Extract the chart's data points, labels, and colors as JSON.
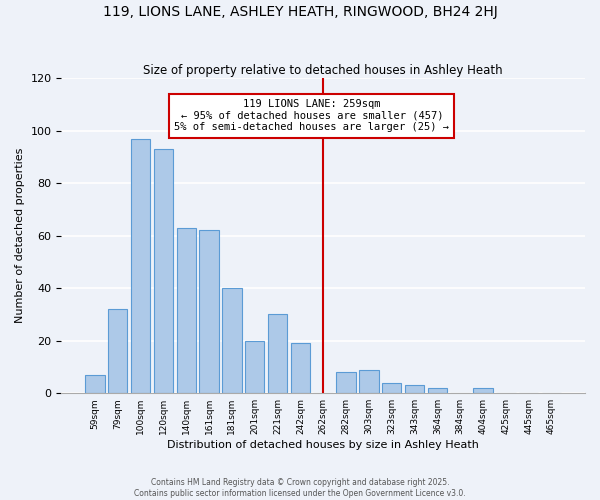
{
  "title": "119, LIONS LANE, ASHLEY HEATH, RINGWOOD, BH24 2HJ",
  "subtitle": "Size of property relative to detached houses in Ashley Heath",
  "xlabel": "Distribution of detached houses by size in Ashley Heath",
  "ylabel": "Number of detached properties",
  "bar_labels": [
    "59sqm",
    "79sqm",
    "100sqm",
    "120sqm",
    "140sqm",
    "161sqm",
    "181sqm",
    "201sqm",
    "221sqm",
    "242sqm",
    "262sqm",
    "282sqm",
    "303sqm",
    "323sqm",
    "343sqm",
    "364sqm",
    "384sqm",
    "404sqm",
    "425sqm",
    "445sqm",
    "465sqm"
  ],
  "bar_values": [
    7,
    32,
    97,
    93,
    63,
    62,
    40,
    20,
    30,
    19,
    0,
    8,
    9,
    4,
    3,
    2,
    0,
    2,
    0,
    0,
    0
  ],
  "bar_color": "#adc9e8",
  "bar_edge_color": "#5b9bd5",
  "reference_line_x_label": "262sqm",
  "reference_line_color": "#cc0000",
  "ylim": [
    0,
    120
  ],
  "yticks": [
    0,
    20,
    40,
    60,
    80,
    100,
    120
  ],
  "annotation_title": "119 LIONS LANE: 259sqm",
  "annotation_line1": "← 95% of detached houses are smaller (457)",
  "annotation_line2": "5% of semi-detached houses are larger (25) →",
  "annotation_box_color": "#ffffff",
  "annotation_border_color": "#cc0000",
  "footer_line1": "Contains HM Land Registry data © Crown copyright and database right 2025.",
  "footer_line2": "Contains public sector information licensed under the Open Government Licence v3.0.",
  "background_color": "#eef2f9",
  "grid_color": "#ffffff"
}
